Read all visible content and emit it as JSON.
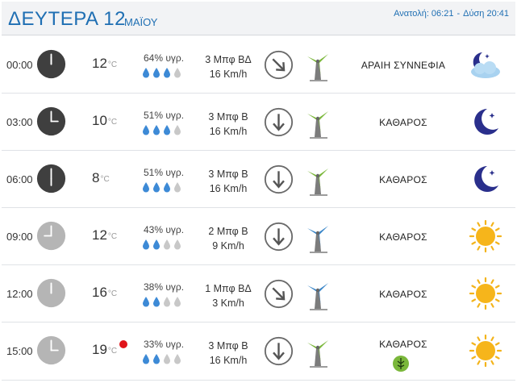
{
  "header": {
    "day": "ΔΕΥΤΕΡΑ 12",
    "month": "ΜΑΪΟΥ",
    "sunrise": "Ανατολή: 06:21",
    "sunset": "Δύση 20:41"
  },
  "colors": {
    "accent": "#1f6fb3",
    "clock_dark": "#3f3f3f",
    "clock_light": "#b5b5b5",
    "drop_on": "#3d8ad6",
    "drop_off": "#c8c8c8",
    "turbine_green": "#7ab73a",
    "turbine_blue": "#3a86c8",
    "alert": "#e0141a"
  },
  "rows": [
    {
      "time": "00:00",
      "clock": "dark",
      "temp": "12",
      "unit": "°C",
      "humidity": "64% υγρ.",
      "drops_filled": 3,
      "wind_beaufort": "3 Μπφ ΒΔ",
      "wind_speed": "16 Km/h",
      "wind_arrow": "down-right-arrow-icon",
      "turbine": "green",
      "condition": "ΑΡΑΙΗ ΣΥΝΝΕΦΙΑ",
      "weather_icon": "moon-cloud-icon"
    },
    {
      "time": "03:00",
      "clock": "dark",
      "temp": "10",
      "unit": "°C",
      "humidity": "51% υγρ.",
      "drops_filled": 3,
      "wind_beaufort": "3 Μπφ Β",
      "wind_speed": "16 Km/h",
      "wind_arrow": "down-arrow-icon",
      "turbine": "green",
      "condition": "ΚΑΘΑΡΟΣ",
      "weather_icon": "moon-icon"
    },
    {
      "time": "06:00",
      "clock": "dark",
      "temp": "8",
      "unit": "°C",
      "humidity": "51% υγρ.",
      "drops_filled": 3,
      "wind_beaufort": "3 Μπφ Β",
      "wind_speed": "16 Km/h",
      "wind_arrow": "down-arrow-icon",
      "turbine": "green",
      "condition": "ΚΑΘΑΡΟΣ",
      "weather_icon": "moon-icon"
    },
    {
      "time": "09:00",
      "clock": "light",
      "temp": "12",
      "unit": "°C",
      "humidity": "43% υγρ.",
      "drops_filled": 2,
      "wind_beaufort": "2 Μπφ Β",
      "wind_speed": "9 Km/h",
      "wind_arrow": "down-arrow-icon",
      "turbine": "blue",
      "condition": "ΚΑΘΑΡΟΣ",
      "weather_icon": "sun-icon"
    },
    {
      "time": "12:00",
      "clock": "light",
      "temp": "16",
      "unit": "°C",
      "humidity": "38% υγρ.",
      "drops_filled": 2,
      "wind_beaufort": "1 Μπφ ΒΔ",
      "wind_speed": "3 Km/h",
      "wind_arrow": "down-right-arrow-icon",
      "turbine": "blue",
      "condition": "ΚΑΘΑΡΟΣ",
      "weather_icon": "sun-icon"
    },
    {
      "time": "15:00",
      "clock": "light",
      "temp": "19",
      "unit": "°C",
      "humidity": "33% υγρ.",
      "drops_filled": 2,
      "wind_beaufort": "3 Μπφ Β",
      "wind_speed": "16 Km/h",
      "wind_arrow": "down-arrow-icon",
      "turbine": "green",
      "condition": "ΚΑΘΑΡΟΣ",
      "weather_icon": "sun-icon",
      "alert": true,
      "pollen": true
    }
  ]
}
